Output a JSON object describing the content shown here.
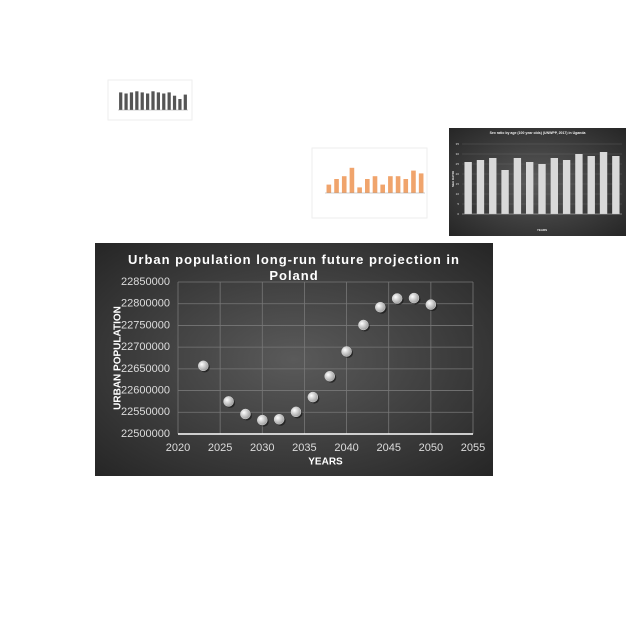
{
  "chart_data": [
    {
      "type": "bar",
      "values": [
        8,
        7.5,
        8,
        8.5,
        8,
        7.5,
        8.5,
        8,
        7.5,
        8,
        6.5,
        5,
        7
      ],
      "color": "#555555",
      "categories": [
        null,
        null,
        null,
        null,
        null,
        null,
        null,
        null,
        null,
        null,
        null,
        null,
        null
      ],
      "ylim": [
        0,
        10
      ]
    },
    {
      "type": "bar",
      "values": [
        3,
        5,
        6,
        9,
        2,
        5,
        6,
        3,
        6,
        6,
        5,
        8,
        7
      ],
      "color": "#f0a46c",
      "categories": [
        null,
        null,
        null,
        null,
        null,
        null,
        null,
        null,
        null,
        null,
        null,
        null,
        null
      ],
      "ylim": [
        0,
        10
      ]
    },
    {
      "type": "bar",
      "title": "Sex ratio by age (100 year olds) (UNWPP, 2017) in Uganda",
      "xlabel": "YEARS",
      "ylabel": "SEX RATIO",
      "values": [
        26,
        27,
        28,
        22,
        28,
        26,
        25,
        28,
        27,
        30,
        29,
        31,
        29
      ],
      "color": "#d9d9d9",
      "categories": [
        null,
        null,
        null,
        null,
        null,
        null,
        null,
        null,
        null,
        null,
        null,
        null,
        null
      ],
      "ylim": [
        0,
        35
      ],
      "yticks": [
        0,
        5,
        10,
        15,
        20,
        25,
        30,
        35
      ],
      "grid": true
    },
    {
      "type": "scatter",
      "title": "Urban population long-run future projection in Poland",
      "xlabel": "YEARS",
      "ylabel": "URBAN POPULATION",
      "x": [
        2023,
        2026,
        2028,
        2030,
        2032,
        2034,
        2036,
        2038,
        2040,
        2042,
        2044,
        2046,
        2048,
        2050
      ],
      "values": [
        22657000,
        22575000,
        22546000,
        22532000,
        22534000,
        22551000,
        22585000,
        22633000,
        22690000,
        22751000,
        22792000,
        22812000,
        22813000,
        22798000
      ],
      "color": "#d9d9d9",
      "xlim": [
        2020,
        2055
      ],
      "xticks": [
        2020,
        2025,
        2030,
        2035,
        2040,
        2045,
        2050,
        2055
      ],
      "ylim": [
        22500000,
        22850000
      ],
      "yticks": [
        22500000,
        22550000,
        22600000,
        22650000,
        22700000,
        22750000,
        22800000,
        22850000
      ],
      "grid": true
    }
  ]
}
